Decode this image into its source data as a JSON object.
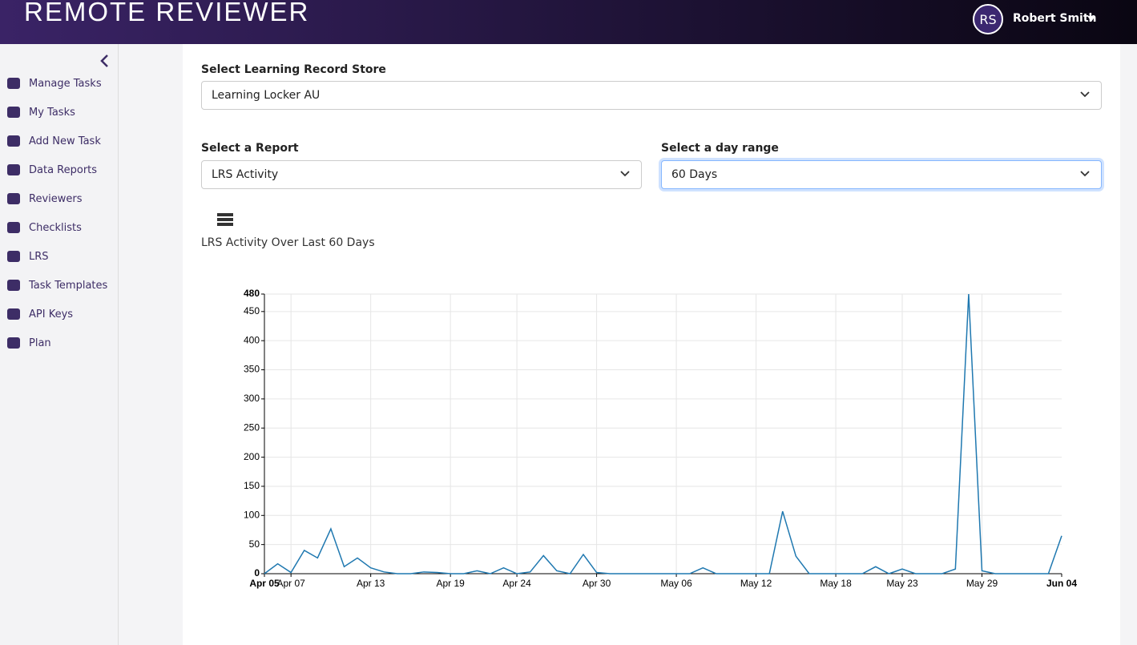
{
  "header": {
    "brand": "REMOTE REVIEWER",
    "avatar": "RS",
    "user": "Robert Smith"
  },
  "sidebar": {
    "items": [
      "Manage Tasks",
      "My Tasks",
      "Add New Task",
      "Data Reports",
      "Reviewers",
      "Checklists",
      "LRS",
      "Task Templates",
      "API Keys",
      "Plan"
    ]
  },
  "form": {
    "lrs_label": "Select Learning Record Store",
    "lrs_value": "Learning Locker AU",
    "report_label": "Select a Report",
    "report_value": "LRS Activity",
    "range_label": "Select a day range",
    "range_value": "60 Days"
  },
  "chart_data": {
    "type": "line",
    "title": "LRS Activity Over Last 60 Days",
    "categories": [
      "Apr 05",
      null,
      "Apr 07",
      null,
      null,
      null,
      null,
      null,
      "Apr 13",
      null,
      null,
      null,
      null,
      null,
      "Apr 19",
      null,
      null,
      null,
      null,
      "Apr 24",
      null,
      null,
      null,
      null,
      null,
      "Apr 30",
      null,
      null,
      null,
      null,
      null,
      "May 06",
      null,
      null,
      null,
      null,
      null,
      "May 12",
      null,
      null,
      null,
      null,
      null,
      "May 18",
      null,
      null,
      null,
      null,
      "May 23",
      null,
      null,
      null,
      null,
      null,
      "May 29",
      null,
      null,
      null,
      null,
      null,
      "Jun 04"
    ],
    "values": [
      0,
      17,
      2,
      40,
      27,
      77,
      12,
      27,
      10,
      3,
      0,
      0,
      3,
      2,
      0,
      0,
      5,
      0,
      10,
      0,
      3,
      31,
      5,
      0,
      33,
      2,
      0,
      0,
      0,
      0,
      0,
      0,
      0,
      10,
      0,
      0,
      0,
      0,
      0,
      107,
      30,
      0,
      0,
      0,
      0,
      0,
      12,
      0,
      8,
      0,
      0,
      0,
      8,
      480,
      5,
      0,
      0,
      0,
      0,
      0,
      65
    ],
    "color": "#1f78b0",
    "ylim": [
      0,
      480
    ],
    "yticks": [
      0,
      50,
      100,
      150,
      200,
      250,
      300,
      350,
      400,
      450,
      480
    ],
    "grid": true
  }
}
